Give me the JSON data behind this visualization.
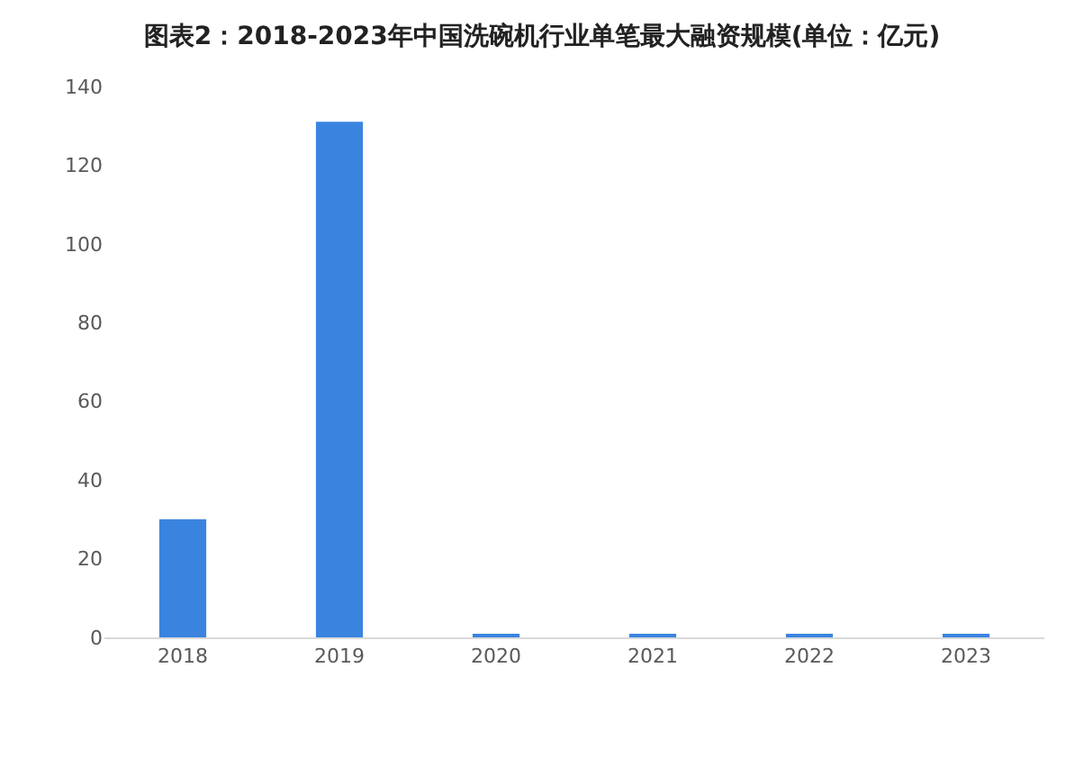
{
  "chart_data": {
    "type": "bar",
    "title": "图表2：2018-2023年中国洗碗机行业单笔最大融资规模(单位：亿元)",
    "categories": [
      "2018",
      "2019",
      "2020",
      "2021",
      "2022",
      "2023"
    ],
    "values": [
      30,
      131,
      0.5,
      0.5,
      0.5,
      0.5
    ],
    "color": "#3a84e0",
    "ylim": [
      0,
      140
    ],
    "yticks": [
      0,
      20,
      40,
      60,
      80,
      100,
      120,
      140
    ],
    "grid": false
  }
}
